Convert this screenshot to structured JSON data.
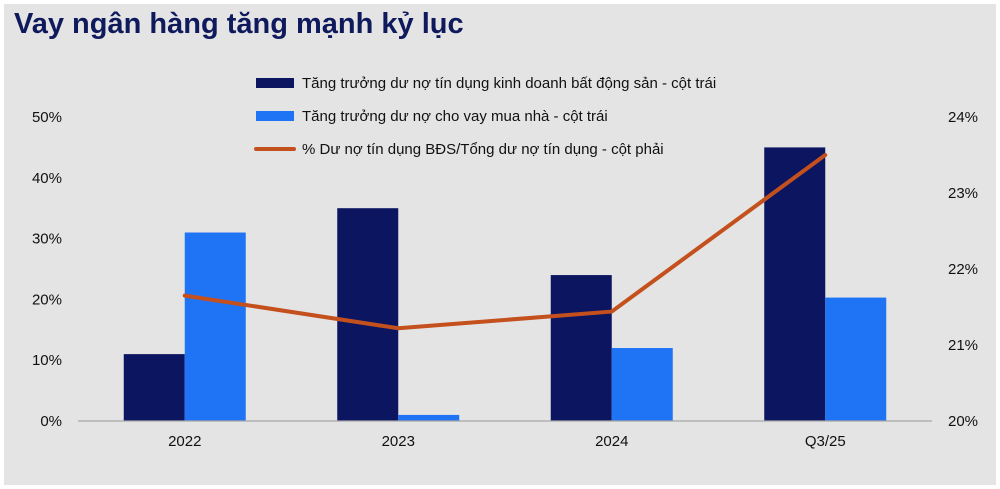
{
  "title": "Vay ngân hàng tăng mạnh kỷ lục",
  "chart_data": {
    "type": "bar",
    "categories": [
      "2022",
      "2023",
      "2024",
      "Q3/25"
    ],
    "series": [
      {
        "name": "Tăng trưởng dư nợ tín dụng kinh doanh bất động sản - cột trái",
        "type": "bar",
        "axis": "left",
        "color": "#0b1560",
        "values": [
          11,
          35,
          24,
          45
        ]
      },
      {
        "name": "Tăng trưởng dư nợ cho vay mua nhà - cột trái",
        "type": "bar",
        "axis": "left",
        "color": "#1f73f5",
        "values": [
          31,
          1,
          12,
          20.3
        ]
      },
      {
        "name": "% Dư nợ tín dụng BĐS/Tổng dư nợ tín dụng - cột phải",
        "type": "line",
        "axis": "right",
        "color": "#c4501d",
        "values": [
          21.65,
          21.22,
          21.44,
          23.5
        ]
      }
    ],
    "left_axis": {
      "ylim": [
        0,
        50
      ],
      "ticks": [
        "0%",
        "10%",
        "20%",
        "30%",
        "40%",
        "50%"
      ]
    },
    "right_axis": {
      "ylim": [
        20,
        24
      ],
      "ticks": [
        "20%",
        "21%",
        "22%",
        "23%",
        "24%"
      ]
    },
    "legend_position": "top-center",
    "grid": false
  }
}
